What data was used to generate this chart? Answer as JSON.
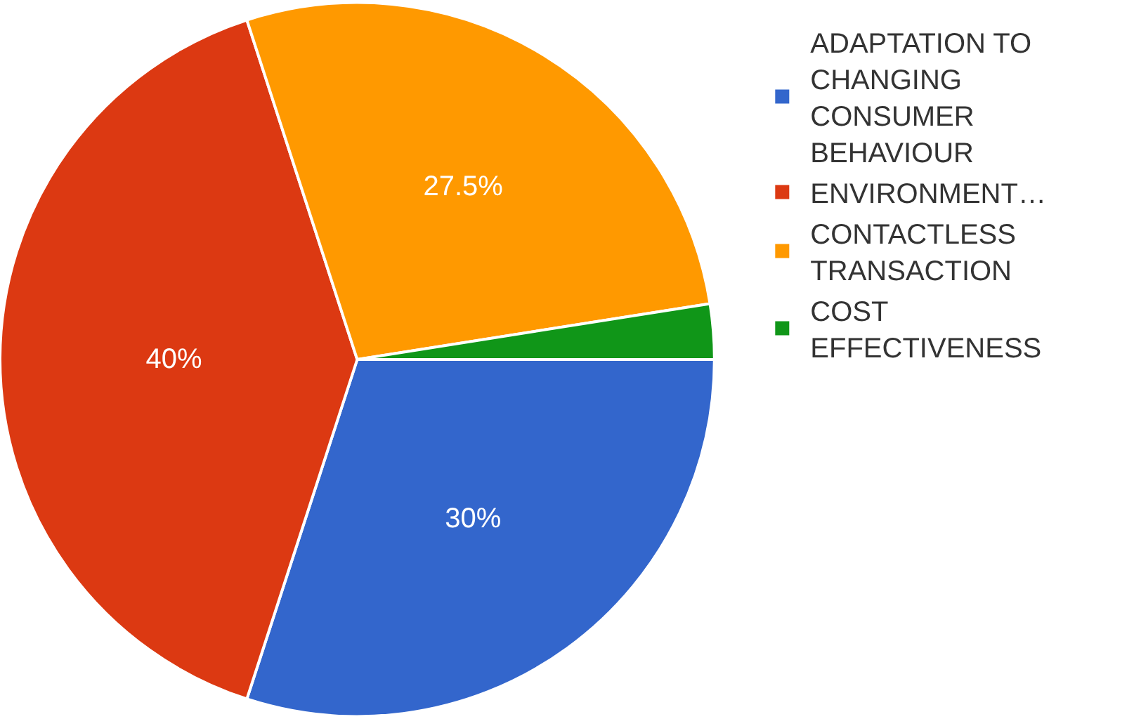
{
  "chart_data": {
    "type": "pie",
    "categories": [
      "ADAPTATION TO CHANGING CONSUMER BEHAVIOUR",
      "ENVIRONMENT…",
      "CONTACTLESS TRANSACTION",
      "COST EFFECTIVENESS"
    ],
    "values": [
      30,
      40,
      27.5,
      2.5
    ],
    "value_labels": [
      "30%",
      "40%",
      "27.5%",
      null
    ],
    "colors": [
      "#3366cc",
      "#dc3912",
      "#ff9900",
      "#109618"
    ],
    "legend": "top right"
  }
}
